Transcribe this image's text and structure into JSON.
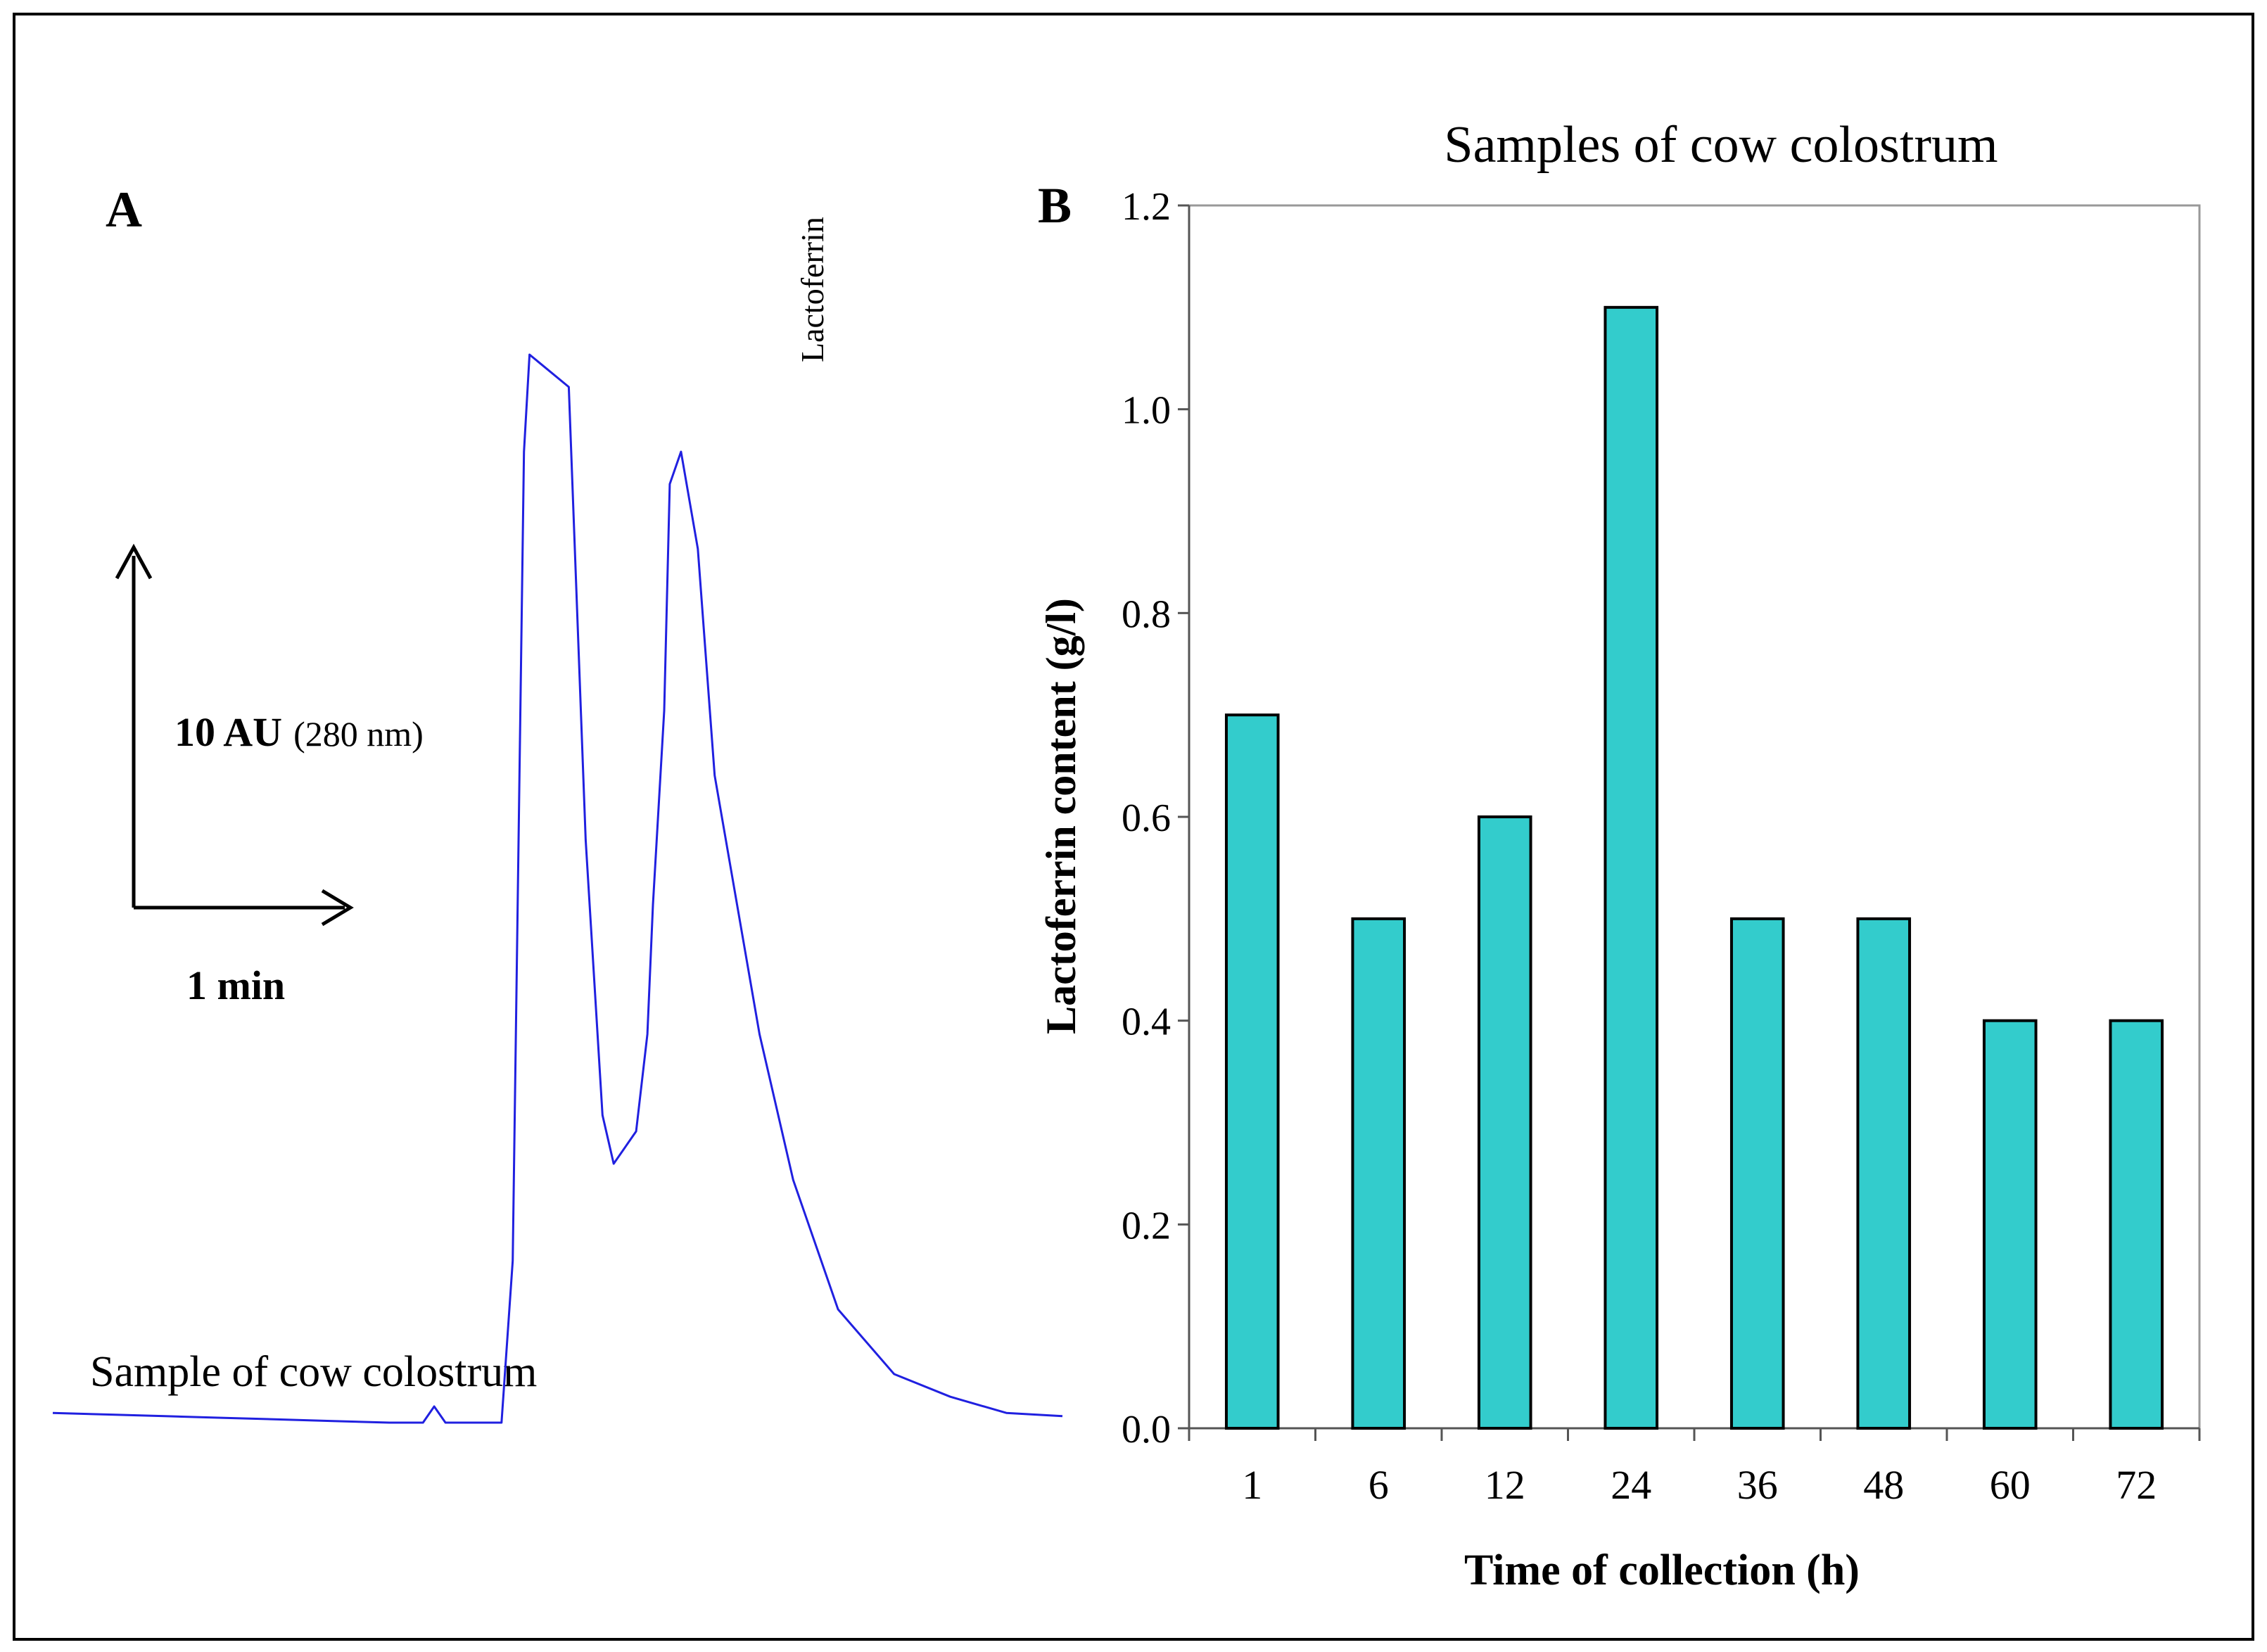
{
  "panel_a": {
    "label": "A",
    "trace_color": "#2020e0",
    "peak_label": "Lactoferrin",
    "sample_label": "Sample of cow colostrum",
    "scale_y_bold": "10 AU",
    "scale_y_unit": "(280 nm)",
    "scale_x": "1 min"
  },
  "panel_b": {
    "label": "B",
    "bar_color": "#33cccc"
  },
  "chart_data": [
    {
      "type": "line",
      "title": "",
      "xlabel": "",
      "ylabel": "",
      "note": "Chromatogram trace, detector absorbance vs. elution time (arbitrary units; scale bars 10 AU and 1 min)",
      "x": [
        0,
        0.5,
        1.0,
        1.5,
        2.0,
        2.5,
        3.0,
        3.3,
        3.4,
        3.5,
        3.8,
        4.0,
        4.1,
        4.2,
        4.25,
        4.6,
        4.75,
        4.9,
        5.0,
        5.2,
        5.3,
        5.35,
        5.45,
        5.5,
        5.6,
        5.75,
        5.9,
        6.1,
        6.3,
        6.6,
        7.0,
        7.5,
        8.0,
        8.5,
        9.0
      ],
      "y": [
        0.3,
        0.25,
        0.2,
        0.15,
        0.1,
        0.05,
        0.0,
        0.0,
        0.5,
        0.0,
        0.0,
        0.0,
        5.0,
        30.0,
        33.0,
        32.0,
        18.0,
        9.5,
        8.0,
        9.0,
        12.0,
        16.0,
        22.0,
        29.0,
        30.0,
        27.0,
        20.0,
        16.0,
        12.0,
        7.5,
        3.5,
        1.5,
        0.8,
        0.3,
        0.2
      ],
      "annotations": [
        "Lactoferrin",
        "Sample of cow colostrum"
      ]
    },
    {
      "type": "bar",
      "title": "Samples of cow colostrum",
      "xlabel": "Time of collection (h)",
      "ylabel": "Lactoferrin content (g/l)",
      "categories": [
        "1",
        "6",
        "12",
        "24",
        "36",
        "48",
        "60",
        "72"
      ],
      "values": [
        0.7,
        0.5,
        0.6,
        1.1,
        0.5,
        0.5,
        0.4,
        0.4
      ],
      "ylim": [
        0,
        1.2
      ],
      "yticks": [
        "0.0",
        "0.2",
        "0.4",
        "0.6",
        "0.8",
        "1.0",
        "1.2"
      ],
      "grid": false,
      "legend": "none"
    }
  ]
}
